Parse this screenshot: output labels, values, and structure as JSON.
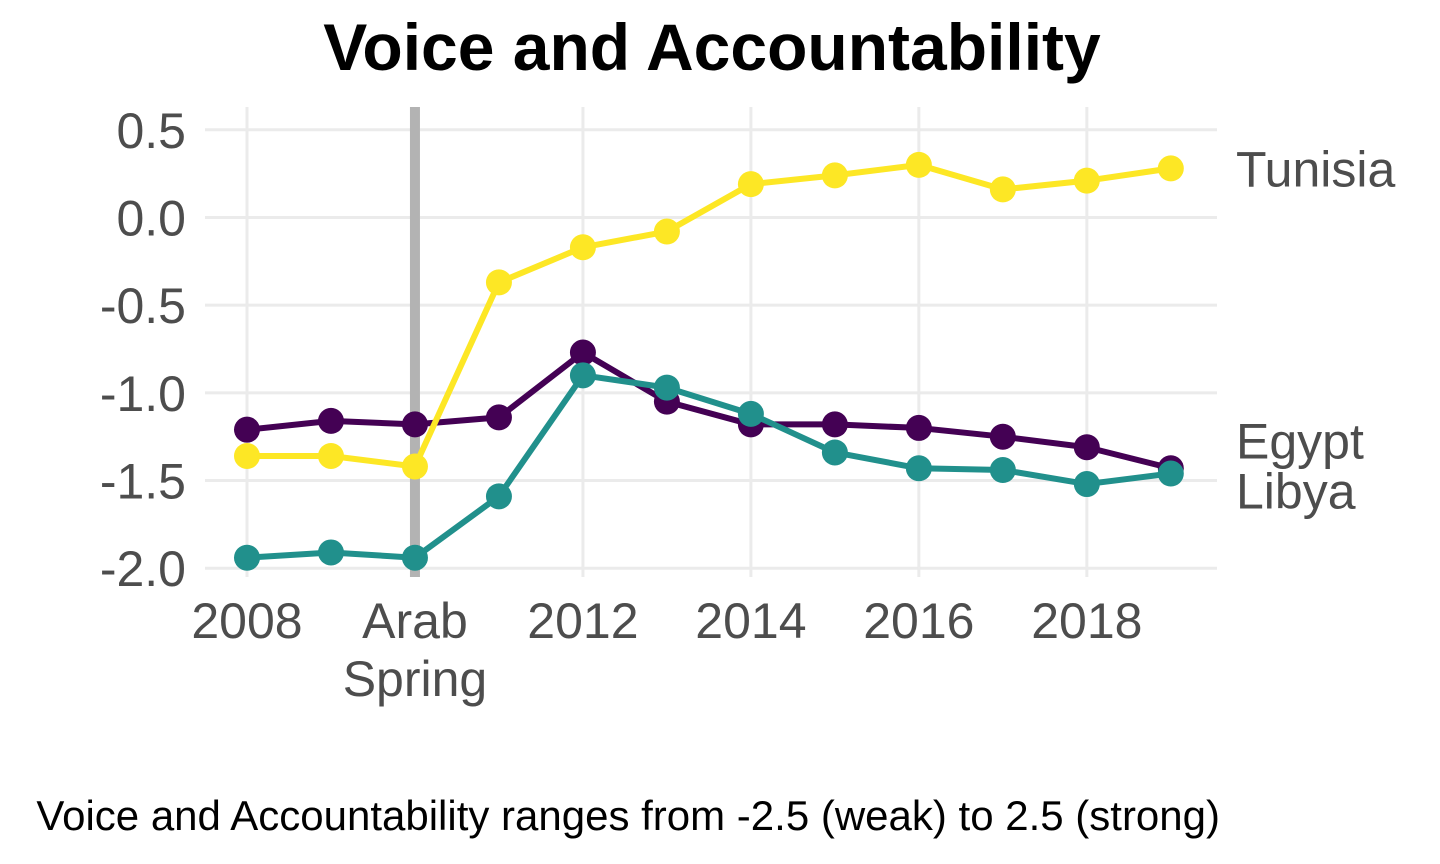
{
  "chart_data": {
    "type": "line",
    "title": "Voice and Accountability",
    "caption": "Voice and Accountability ranges from -2.5 (weak) to 2.5 (strong)",
    "xlabel": "",
    "ylabel": "",
    "x": [
      2008,
      2009,
      2010,
      2011,
      2012,
      2013,
      2014,
      2015,
      2016,
      2017,
      2018,
      2019
    ],
    "xlim": [
      2007.5,
      2019.55
    ],
    "ylim": [
      -2.05,
      0.63
    ],
    "x_ticks": [
      {
        "value": 2008,
        "label": "2008"
      },
      {
        "value": 2010,
        "label": "Arab\nSpring"
      },
      {
        "value": 2012,
        "label": "2012"
      },
      {
        "value": 2014,
        "label": "2014"
      },
      {
        "value": 2016,
        "label": "2016"
      },
      {
        "value": 2018,
        "label": "2018"
      }
    ],
    "y_ticks": [
      {
        "value": 0.5,
        "label": "0.5"
      },
      {
        "value": 0.0,
        "label": "0.0"
      },
      {
        "value": -0.5,
        "label": "-0.5"
      },
      {
        "value": -1.0,
        "label": "-1.0"
      },
      {
        "value": -1.5,
        "label": "-1.5"
      },
      {
        "value": -2.0,
        "label": "-2.0"
      }
    ],
    "reference_line": {
      "x": 2010,
      "color": "#b3b3b3"
    },
    "grid": true,
    "legend": "direct labels at right end of lines",
    "series": [
      {
        "name": "Egypt",
        "color": "#440154",
        "values": [
          -1.21,
          -1.16,
          -1.18,
          -1.14,
          -0.77,
          -1.05,
          -1.18,
          -1.18,
          -1.2,
          -1.25,
          -1.31,
          -1.43
        ]
      },
      {
        "name": "Libya",
        "color": "#21908c",
        "values": [
          -1.94,
          -1.91,
          -1.94,
          -1.59,
          -0.9,
          -0.97,
          -1.12,
          -1.34,
          -1.43,
          -1.44,
          -1.52,
          -1.46
        ]
      },
      {
        "name": "Tunisia",
        "color": "#fde725",
        "values": [
          -1.36,
          -1.36,
          -1.42,
          -0.37,
          -0.17,
          -0.08,
          0.19,
          0.24,
          0.3,
          0.16,
          0.21,
          0.28
        ]
      }
    ]
  }
}
